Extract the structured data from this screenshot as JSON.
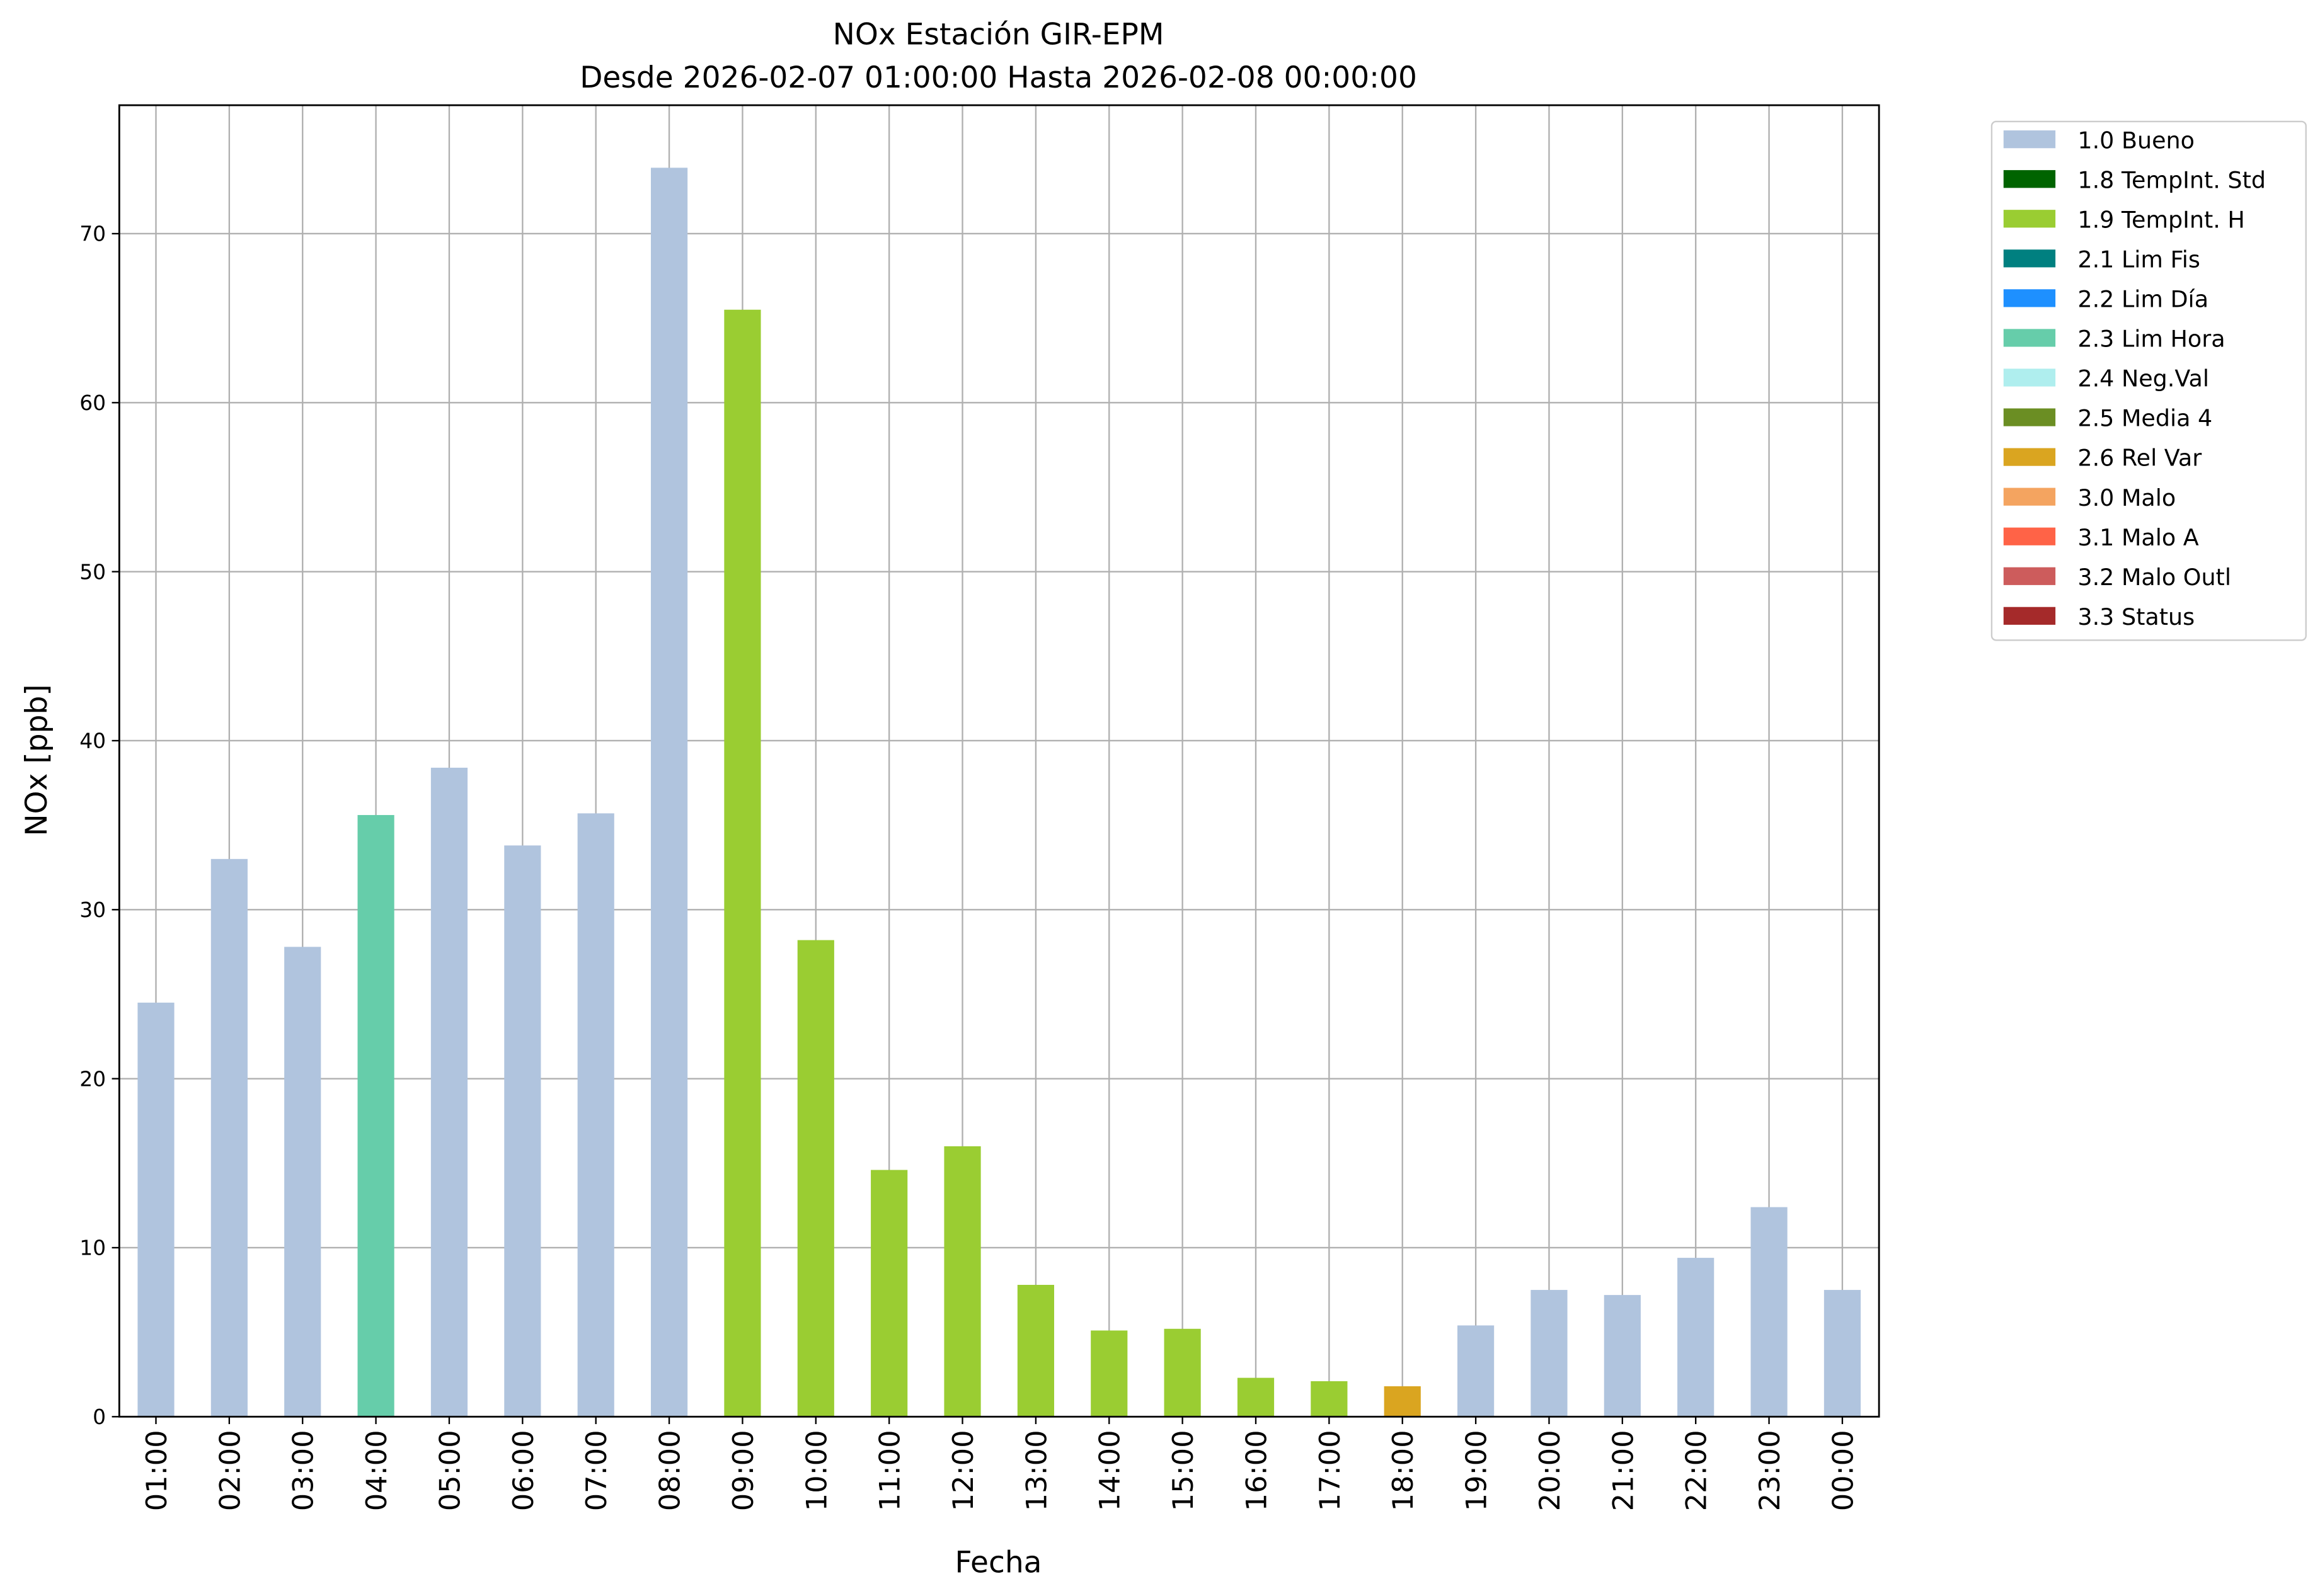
{
  "chart_data": {
    "type": "stacked_bar",
    "title": "NOx Estación GIR-EPM",
    "subtitle": "Desde 2026-02-07 01:00:00 Hasta 2026-02-08 00:00:00",
    "x_label": "Fecha",
    "y_label": "NOx [ppb]",
    "categories": [
      "01:00",
      "02:00",
      "03:00",
      "04:00",
      "05:00",
      "06:00",
      "07:00",
      "08:00",
      "09:00",
      "10:00",
      "11:00",
      "12:00",
      "13:00",
      "14:00",
      "15:00",
      "16:00",
      "17:00",
      "18:00",
      "19:00",
      "20:00",
      "21:00",
      "22:00",
      "23:00",
      "00:00"
    ],
    "series": [
      {
        "name": "1.0 Bueno",
        "color": "#b0c4de",
        "values": [
          24.5,
          33.0,
          27.8,
          null,
          38.4,
          33.8,
          35.7,
          73.9,
          null,
          null,
          null,
          null,
          null,
          null,
          null,
          null,
          null,
          null,
          5.4,
          7.5,
          7.2,
          9.4,
          12.4,
          7.5
        ]
      },
      {
        "name": "1.8 TempInt. Std",
        "color": "#006400",
        "values": [
          null,
          null,
          null,
          null,
          null,
          null,
          null,
          null,
          null,
          null,
          null,
          null,
          null,
          null,
          null,
          null,
          null,
          null,
          null,
          null,
          null,
          null,
          null,
          null
        ]
      },
      {
        "name": "1.9 TempInt. H",
        "color": "#9acd32",
        "values": [
          null,
          null,
          null,
          null,
          null,
          null,
          null,
          null,
          65.5,
          28.2,
          14.6,
          16.0,
          7.8,
          5.1,
          5.2,
          2.3,
          2.1,
          null,
          null,
          null,
          null,
          null,
          null,
          null
        ]
      },
      {
        "name": "2.1 Lim Fis",
        "color": "#008080",
        "values": [
          null,
          null,
          null,
          null,
          null,
          null,
          null,
          null,
          null,
          null,
          null,
          null,
          null,
          null,
          null,
          null,
          null,
          null,
          null,
          null,
          null,
          null,
          null,
          null
        ]
      },
      {
        "name": "2.2 Lim Día",
        "color": "#1e90ff",
        "values": [
          null,
          null,
          null,
          null,
          null,
          null,
          null,
          null,
          null,
          null,
          null,
          null,
          null,
          null,
          null,
          null,
          null,
          null,
          null,
          null,
          null,
          null,
          null,
          null
        ]
      },
      {
        "name": "2.3 Lim Hora",
        "color": "#66cdaa",
        "values": [
          null,
          null,
          null,
          35.6,
          null,
          null,
          null,
          null,
          null,
          null,
          null,
          null,
          null,
          null,
          null,
          null,
          null,
          null,
          null,
          null,
          null,
          null,
          null,
          null
        ]
      },
      {
        "name": "2.4 Neg.Val",
        "color": "#afeeee",
        "values": [
          null,
          null,
          null,
          null,
          null,
          null,
          null,
          null,
          null,
          null,
          null,
          null,
          null,
          null,
          null,
          null,
          null,
          null,
          null,
          null,
          null,
          null,
          null,
          null
        ]
      },
      {
        "name": "2.5 Media 4",
        "color": "#6b8e23",
        "values": [
          null,
          null,
          null,
          null,
          null,
          null,
          null,
          null,
          null,
          null,
          null,
          null,
          null,
          null,
          null,
          null,
          null,
          null,
          null,
          null,
          null,
          null,
          null,
          null
        ]
      },
      {
        "name": "2.6 Rel Var",
        "color": "#daa520",
        "values": [
          null,
          null,
          null,
          null,
          null,
          null,
          null,
          null,
          null,
          null,
          null,
          null,
          null,
          null,
          null,
          null,
          null,
          1.8,
          null,
          null,
          null,
          null,
          null,
          null
        ]
      },
      {
        "name": "3.0 Malo",
        "color": "#f4a460",
        "values": [
          null,
          null,
          null,
          null,
          null,
          null,
          null,
          null,
          null,
          null,
          null,
          null,
          null,
          null,
          null,
          null,
          null,
          null,
          null,
          null,
          null,
          null,
          null,
          null
        ]
      },
      {
        "name": "3.1 Malo A",
        "color": "#ff6347",
        "values": [
          null,
          null,
          null,
          null,
          null,
          null,
          null,
          null,
          null,
          null,
          null,
          null,
          null,
          null,
          null,
          null,
          null,
          null,
          null,
          null,
          null,
          null,
          null,
          null
        ]
      },
      {
        "name": "3.2 Malo Outl",
        "color": "#cd5c5c",
        "values": [
          null,
          null,
          null,
          null,
          null,
          null,
          null,
          null,
          null,
          null,
          null,
          null,
          null,
          null,
          null,
          null,
          null,
          null,
          null,
          null,
          null,
          null,
          null,
          null
        ]
      },
      {
        "name": "3.3 Status",
        "color": "#a52a2a",
        "values": [
          null,
          null,
          null,
          null,
          null,
          null,
          null,
          null,
          null,
          null,
          null,
          null,
          null,
          null,
          null,
          null,
          null,
          null,
          null,
          null,
          null,
          null,
          null,
          null
        ]
      }
    ],
    "ylim": [
      0,
      77.6
    ],
    "yticks": [
      0,
      10,
      20,
      30,
      40,
      50,
      60,
      70
    ],
    "grid": true,
    "legend": "outside-right"
  }
}
